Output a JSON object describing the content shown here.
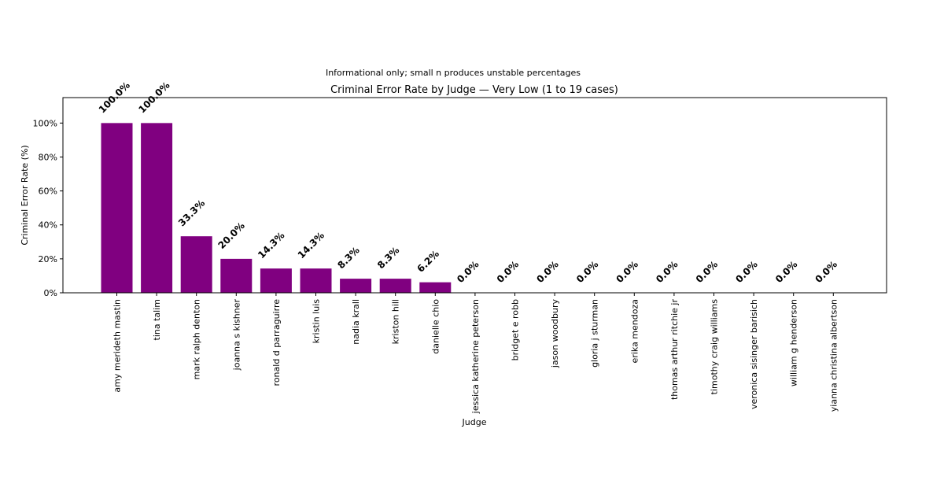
{
  "chart_data": {
    "type": "bar",
    "suptitle": "Informational only; small n produces unstable percentages",
    "title": "Criminal Error Rate by Judge — Very Low (1 to 19 cases)",
    "xlabel": "Judge",
    "ylabel": "Criminal Error Rate (%)",
    "ylim": [
      0,
      115
    ],
    "yticks": [
      0,
      20,
      40,
      60,
      80,
      100
    ],
    "ytick_labels": [
      "0%",
      "20%",
      "40%",
      "60%",
      "80%",
      "100%"
    ],
    "grid": false,
    "bar_color": "#800080",
    "categories": [
      "amy merideth mastin",
      "tina talim",
      "mark ralph denton",
      "joanna s kishner",
      "ronald d parraguirre",
      "kristin luis",
      "nadia krall",
      "kriston hill",
      "danielle chio",
      "jessica katherine peterson",
      "bridget e robb",
      "jason woodbury",
      "gloria j sturman",
      "erika mendoza",
      "thomas arthur ritchie jr",
      "timothy craig williams",
      "veronica sisinger barisich",
      "william g henderson",
      "yianna christina albertson"
    ],
    "values": [
      100.0,
      100.0,
      33.3,
      20.0,
      14.3,
      14.3,
      8.3,
      8.3,
      6.2,
      0.0,
      0.0,
      0.0,
      0.0,
      0.0,
      0.0,
      0.0,
      0.0,
      0.0,
      0.0
    ],
    "data_labels": [
      "100.0%",
      "100.0%",
      "33.3%",
      "20.0%",
      "14.3%",
      "14.3%",
      "8.3%",
      "8.3%",
      "6.2%",
      "0.0%",
      "0.0%",
      "0.0%",
      "0.0%",
      "0.0%",
      "0.0%",
      "0.0%",
      "0.0%",
      "0.0%",
      "0.0%"
    ]
  }
}
